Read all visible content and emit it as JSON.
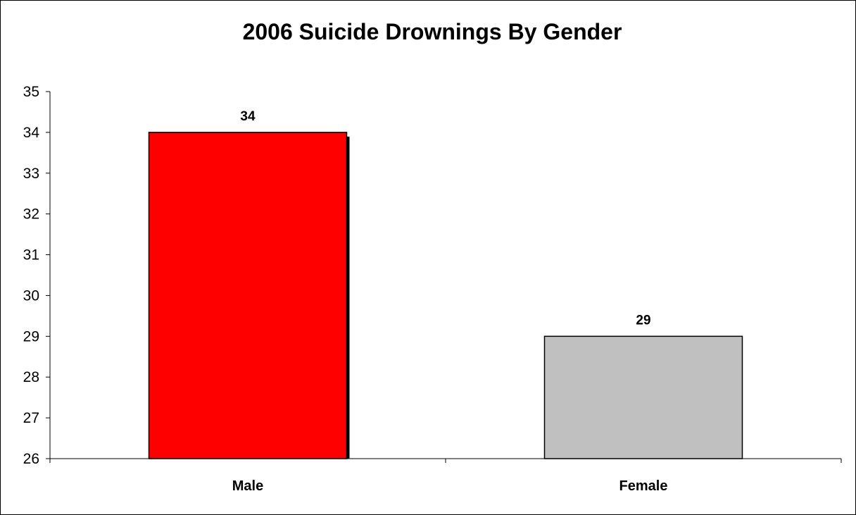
{
  "chart_data": {
    "type": "bar",
    "title": "2006 Suicide Drownings By Gender",
    "xlabel": "",
    "ylabel": "",
    "categories": [
      "Male",
      "Female"
    ],
    "values": [
      34,
      29
    ],
    "data_labels": [
      "34",
      "29"
    ],
    "bar_colors": [
      "#ff0000",
      "#c0c0c0"
    ],
    "ylim": [
      26,
      35
    ],
    "yticks": [
      26,
      27,
      28,
      29,
      30,
      31,
      32,
      33,
      34,
      35
    ],
    "ytick_labels": [
      "26",
      "27",
      "28",
      "29",
      "30",
      "31",
      "32",
      "33",
      "34",
      "35"
    ],
    "grid": false,
    "legend": "none"
  }
}
